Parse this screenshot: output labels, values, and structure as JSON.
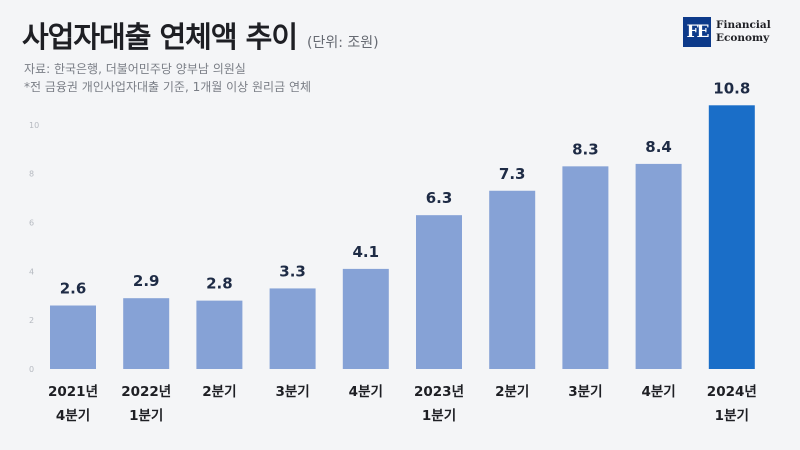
{
  "header": {
    "title": "사업자대출 연체액 추이",
    "unit": "(단위: 조원)",
    "source": "자료: 한국은행, 더불어민주당 양부남 의원실",
    "note": "*전 금융권 개인사업자대출 기준, 1개월 이상 원리금 연체"
  },
  "logo": {
    "mark": "FE",
    "line1": "Financial",
    "line2": "Economy"
  },
  "colors": {
    "bar": "#86a2d6",
    "highlight": "#1a6ec8",
    "value_label": "#1e2b45",
    "axis_label": "#1e1f24"
  },
  "chart_data": {
    "type": "bar",
    "categories": [
      [
        "2021년",
        "4분기"
      ],
      [
        "2022년",
        "1분기"
      ],
      [
        "2분기"
      ],
      [
        "3분기"
      ],
      [
        "4분기"
      ],
      [
        "2023년",
        "1분기"
      ],
      [
        "2분기"
      ],
      [
        "3분기"
      ],
      [
        "4분기"
      ],
      [
        "2024년",
        "1분기"
      ]
    ],
    "values": [
      2.6,
      2.9,
      2.8,
      3.3,
      4.1,
      6.3,
      7.3,
      8.3,
      8.4,
      10.8
    ],
    "value_labels": [
      "2.6",
      "2.9",
      "2.8",
      "3.3",
      "4.1",
      "6.3",
      "7.3",
      "8.3",
      "8.4",
      "10.8"
    ],
    "highlight_index": 9,
    "yticks": [
      "0",
      "2",
      "4",
      "6",
      "8",
      "10"
    ],
    "ylim": [
      0,
      12
    ],
    "grid": false,
    "legend": "none"
  }
}
